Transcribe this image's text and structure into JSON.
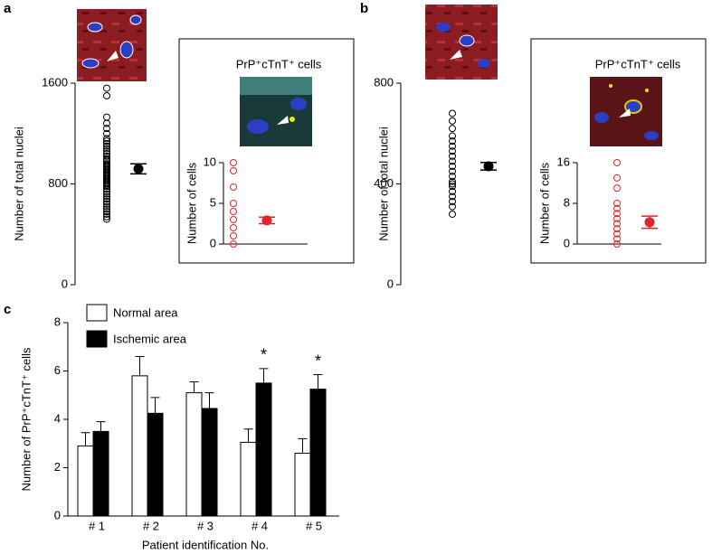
{
  "panel_labels": [
    "a",
    "b",
    "c"
  ],
  "chart_data": [
    {
      "type": "strip",
      "y_label": "Number of total nuclei",
      "color": "#000000",
      "values": [
        1560,
        1500,
        1330,
        1280,
        1240,
        1200,
        1160,
        1140,
        1120,
        1100,
        1080,
        1060,
        1040,
        1020,
        1000,
        990,
        980,
        960,
        950,
        940,
        930,
        920,
        910,
        900,
        890,
        880,
        870,
        860,
        850,
        840,
        830,
        820,
        810,
        800,
        790,
        780,
        760,
        740,
        720,
        700,
        680,
        660,
        640,
        620,
        600,
        580,
        560,
        540,
        520
      ],
      "mean": 920,
      "error": 40,
      "ylim": [
        0,
        1600
      ],
      "yticks": [
        0,
        800,
        1600
      ]
    },
    {
      "type": "strip",
      "title": "PrP⁺cTnT⁺ cells",
      "y_label": "Number of cells",
      "color": "#e0262b",
      "values": [
        10,
        9,
        7,
        5,
        4,
        3,
        2,
        1,
        0
      ],
      "mean": 2.9,
      "error": 0.4,
      "ylim": [
        0,
        10
      ],
      "yticks": [
        0,
        5,
        10
      ]
    },
    {
      "type": "strip",
      "y_label": "Number of total nuclei",
      "color": "#000000",
      "values": [
        680,
        650,
        620,
        590,
        570,
        550,
        530,
        510,
        490,
        470,
        450,
        430,
        410,
        400,
        390,
        370,
        350,
        330,
        310,
        280
      ],
      "mean": 470,
      "error": 15,
      "ylim": [
        0,
        800
      ],
      "yticks": [
        0,
        400,
        800
      ]
    },
    {
      "type": "strip",
      "title": "PrP⁺cTnT⁺ cells",
      "y_label": "Number of cells",
      "color": "#e0262b",
      "values": [
        16,
        13,
        11,
        8,
        7,
        6,
        5,
        4,
        3,
        2,
        1,
        0
      ],
      "mean": 4.3,
      "error": 1.2,
      "ylim": [
        0,
        16
      ],
      "yticks": [
        0,
        8,
        16
      ]
    },
    {
      "type": "bar",
      "y_label": "Number of PrP⁺cTnT⁺ cells",
      "x_label": "Patient identification No.",
      "categories": [
        "# 1",
        "# 2",
        "# 3",
        "# 4",
        "# 5"
      ],
      "series": [
        {
          "name": "Normal area",
          "color": "#ffffff",
          "values": [
            2.9,
            5.8,
            5.1,
            3.05,
            2.6
          ],
          "errors": [
            0.55,
            0.8,
            0.45,
            0.55,
            0.6
          ]
        },
        {
          "name": "Ischemic area",
          "color": "#000000",
          "values": [
            3.5,
            4.25,
            4.45,
            5.5,
            5.25
          ],
          "errors": [
            0.4,
            0.65,
            0.65,
            0.6,
            0.6
          ]
        }
      ],
      "annotations": [
        {
          "text": "*",
          "category": "# 4",
          "series": "Ischemic area"
        },
        {
          "text": "*",
          "category": "# 5",
          "series": "Ischemic area"
        }
      ],
      "ylim": [
        0,
        8
      ],
      "yticks": [
        0,
        2,
        4,
        6,
        8
      ]
    }
  ]
}
